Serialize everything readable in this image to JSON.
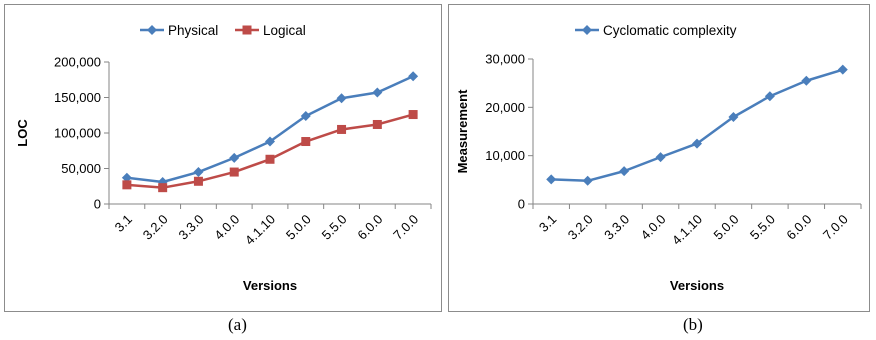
{
  "captions": {
    "a": "(a)",
    "b": "(b)"
  },
  "chart_data": [
    {
      "type": "line",
      "panel": "a",
      "title": "",
      "xlabel": "Versions",
      "ylabel": "LOC",
      "categories": [
        "3.1",
        "3.2.0",
        "3.3.0",
        "4.0.0",
        "4.1.10",
        "5.0.0",
        "5.5.0",
        "6.0.0",
        "7.0.0"
      ],
      "ylim": [
        0,
        200000
      ],
      "yticks": [
        "0",
        "50,000",
        "100,000",
        "150,000",
        "200,000"
      ],
      "grid": false,
      "legend": "top",
      "series": [
        {
          "name": "Physical",
          "color": "#4a7ebb",
          "marker": "diamond",
          "values": [
            37000,
            31000,
            45000,
            65000,
            88000,
            124000,
            149000,
            157000,
            180000
          ]
        },
        {
          "name": "Logical",
          "color": "#be4b48",
          "marker": "square",
          "values": [
            27000,
            23000,
            32000,
            45000,
            63000,
            88000,
            105000,
            112000,
            126000
          ]
        }
      ]
    },
    {
      "type": "line",
      "panel": "b",
      "title": "",
      "xlabel": "Versions",
      "ylabel": "Measurement",
      "categories": [
        "3.1",
        "3.2.0",
        "3.3.0",
        "4.0.0",
        "4.1.10",
        "5.0.0",
        "5.5.0",
        "6.0.0",
        "7.0.0"
      ],
      "ylim": [
        0,
        30000
      ],
      "yticks": [
        "0",
        "10,000",
        "20,000",
        "30,000"
      ],
      "grid": false,
      "legend": "top",
      "series": [
        {
          "name": "Cyclomatic complexity",
          "color": "#4a7ebb",
          "marker": "diamond",
          "values": [
            5100,
            4800,
            6800,
            9700,
            12500,
            18000,
            22300,
            25500,
            27800
          ]
        }
      ]
    }
  ]
}
